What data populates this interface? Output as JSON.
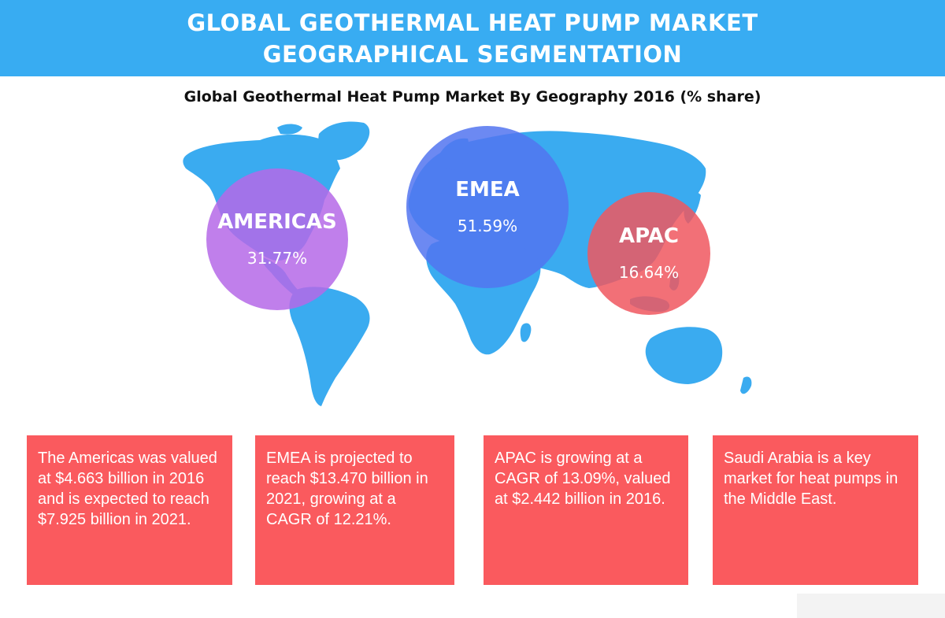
{
  "banner": {
    "line1": "GLOBAL GEOTHERMAL HEAT PUMP MARKET",
    "line2": "GEOGRAPHICAL SEGMENTATION"
  },
  "subtitle": "Global Geothermal Heat Pump Market By Geography 2016 (% share)",
  "colors": {
    "banner": "#38acf2",
    "map": "#3aabf0",
    "americas": "#b569e8",
    "emea": "#5274f0",
    "apac": "#f0575f",
    "note": "#fa5a5e"
  },
  "regions": [
    {
      "name": "AMERICAS",
      "share": "31.77%"
    },
    {
      "name": "EMEA",
      "share": "51.59%"
    },
    {
      "name": "APAC",
      "share": "16.64%"
    }
  ],
  "notes": [
    "The Americas was valued at $4.663 billion in 2016 and is expected to reach $7.925 billion in 2021.",
    "EMEA is projected to reach $13.470 billion in 2021, growing at a CAGR of 12.21%.",
    "APAC is growing at a CAGR of 13.09%, valued at $2.442 billion in 2016.",
    "Saudi Arabia is a key market for heat pumps in the Middle East."
  ]
}
